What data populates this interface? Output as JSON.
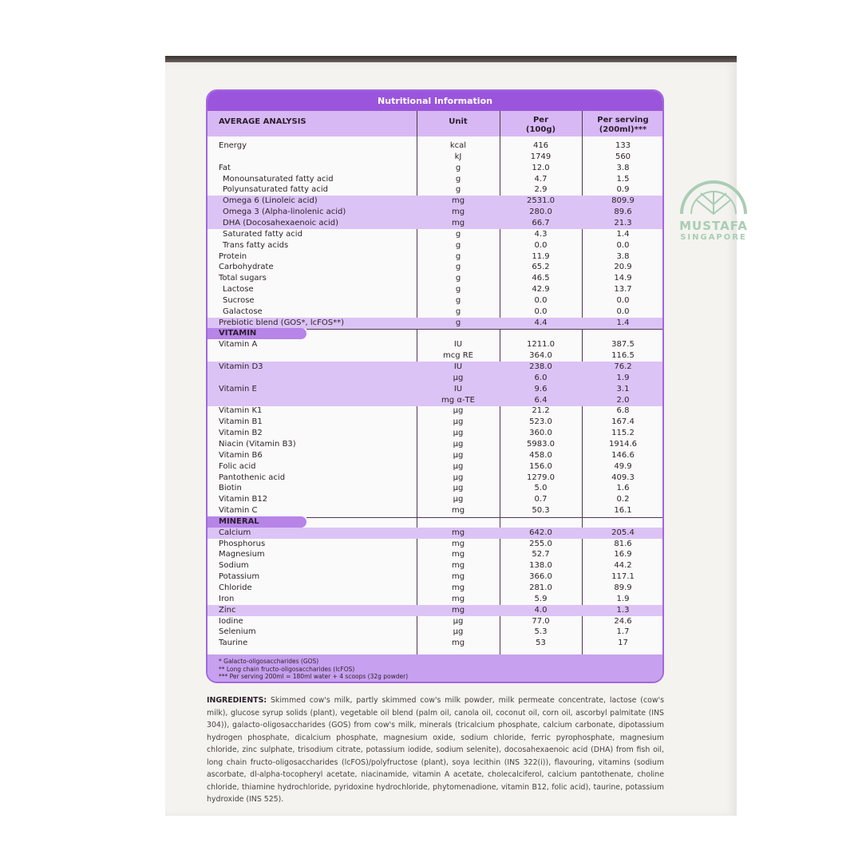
{
  "watermark": {
    "line1": "MUSTAFA",
    "line2": "SINGAPORE"
  },
  "panel": {
    "title": "Nutritional Information",
    "headers": {
      "name": "AVERAGE ANALYSIS",
      "unit": "Unit",
      "per100_1": "Per",
      "per100_2": "(100g)",
      "serving_1": "Per serving",
      "serving_2": "(200ml)***"
    },
    "colors": {
      "accent": "#9b55dd",
      "band": "#dcc3f5",
      "header": "#d7b8f4"
    }
  },
  "rows": [
    {
      "n": "Energy",
      "u": "kcal",
      "a": "416",
      "b": "133"
    },
    {
      "n": "",
      "u": "kJ",
      "a": "1749",
      "b": "560"
    },
    {
      "n": "Fat",
      "u": "g",
      "a": "12.0",
      "b": "3.8"
    },
    {
      "n": "Monounsaturated fatty acid",
      "u": "g",
      "a": "4.7",
      "b": "1.5",
      "sub": true
    },
    {
      "n": "Polyunsaturated fatty acid",
      "u": "g",
      "a": "2.9",
      "b": "0.9",
      "sub": true
    },
    {
      "n": "Omega 6 (Linoleic acid)",
      "u": "mg",
      "a": "2531.0",
      "b": "809.9",
      "sub": true,
      "hl": true
    },
    {
      "n": "Omega 3 (Alpha-linolenic acid)",
      "u": "mg",
      "a": "280.0",
      "b": "89.6",
      "sub": true,
      "hl": true
    },
    {
      "n": "DHA (Docosahexaenoic acid)",
      "u": "mg",
      "a": "66.7",
      "b": "21.3",
      "sub": true,
      "hl": true
    },
    {
      "n": "Saturated fatty acid",
      "u": "g",
      "a": "4.3",
      "b": "1.4",
      "sub": true
    },
    {
      "n": "Trans fatty acids",
      "u": "g",
      "a": "0.0",
      "b": "0.0",
      "sub": true
    },
    {
      "n": "Protein",
      "u": "g",
      "a": "11.9",
      "b": "3.8"
    },
    {
      "n": "Carbohydrate",
      "u": "g",
      "a": "65.2",
      "b": "20.9"
    },
    {
      "n": "Total sugars",
      "u": "g",
      "a": "46.5",
      "b": "14.9"
    },
    {
      "n": "Lactose",
      "u": "g",
      "a": "42.9",
      "b": "13.7",
      "sub": true
    },
    {
      "n": "Sucrose",
      "u": "g",
      "a": "0.0",
      "b": "0.0",
      "sub": true
    },
    {
      "n": "Galactose",
      "u": "g",
      "a": "0.0",
      "b": "0.0",
      "sub": true
    },
    {
      "n": "Prebiotic blend (GOS*, lcFOS**)",
      "u": "g",
      "a": "4.4",
      "b": "1.4",
      "hl": true
    },
    {
      "section": "VITAMIN"
    },
    {
      "n": "Vitamin A",
      "u": "IU",
      "a": "1211.0",
      "b": "387.5"
    },
    {
      "n": "",
      "u": "mcg RE",
      "a": "364.0",
      "b": "116.5"
    },
    {
      "n": "Vitamin D3",
      "u": "IU",
      "a": "238.0",
      "b": "76.2",
      "hl": true
    },
    {
      "n": "",
      "u": "µg",
      "a": "6.0",
      "b": "1.9",
      "hl": true
    },
    {
      "n": "Vitamin E",
      "u": "IU",
      "a": "9.6",
      "b": "3.1",
      "hl": true
    },
    {
      "n": "",
      "u": "mg α-TE",
      "a": "6.4",
      "b": "2.0",
      "hl": true
    },
    {
      "n": "Vitamin K1",
      "u": "µg",
      "a": "21.2",
      "b": "6.8"
    },
    {
      "n": "Vitamin B1",
      "u": "µg",
      "a": "523.0",
      "b": "167.4"
    },
    {
      "n": "Vitamin B2",
      "u": "µg",
      "a": "360.0",
      "b": "115.2"
    },
    {
      "n": "Niacin (Vitamin B3)",
      "u": "µg",
      "a": "5983.0",
      "b": "1914.6"
    },
    {
      "n": "Vitamin B6",
      "u": "µg",
      "a": "458.0",
      "b": "146.6"
    },
    {
      "n": "Folic acid",
      "u": "µg",
      "a": "156.0",
      "b": "49.9"
    },
    {
      "n": "Pantothenic acid",
      "u": "µg",
      "a": "1279.0",
      "b": "409.3"
    },
    {
      "n": "Biotin",
      "u": "µg",
      "a": "5.0",
      "b": "1.6"
    },
    {
      "n": "Vitamin B12",
      "u": "µg",
      "a": "0.7",
      "b": "0.2"
    },
    {
      "n": "Vitamin C",
      "u": "mg",
      "a": "50.3",
      "b": "16.1"
    },
    {
      "section": "MINERAL"
    },
    {
      "n": "Calcium",
      "u": "mg",
      "a": "642.0",
      "b": "205.4",
      "hl": true
    },
    {
      "n": "Phosphorus",
      "u": "mg",
      "a": "255.0",
      "b": "81.6"
    },
    {
      "n": "Magnesium",
      "u": "mg",
      "a": "52.7",
      "b": "16.9"
    },
    {
      "n": "Sodium",
      "u": "mg",
      "a": "138.0",
      "b": "44.2"
    },
    {
      "n": "Potassium",
      "u": "mg",
      "a": "366.0",
      "b": "117.1"
    },
    {
      "n": "Chloride",
      "u": "mg",
      "a": "281.0",
      "b": "89.9"
    },
    {
      "n": "Iron",
      "u": "mg",
      "a": "5.9",
      "b": "1.9"
    },
    {
      "n": "Zinc",
      "u": "mg",
      "a": "4.0",
      "b": "1.3",
      "hl": true
    },
    {
      "n": "Iodine",
      "u": "µg",
      "a": "77.0",
      "b": "24.6"
    },
    {
      "n": "Selenium",
      "u": "µg",
      "a": "5.3",
      "b": "1.7"
    },
    {
      "n": "Taurine",
      "u": "mg",
      "a": "53",
      "b": "17"
    }
  ],
  "footnotes": [
    "* Galacto-oligosaccharides (GOS)",
    "** Long chain fructo-oligosaccharides (lcFOS)",
    "*** Per serving 200ml = 180ml water + 4 scoops (32g powder)"
  ],
  "ingredients": {
    "label": "INGREDIENTS:",
    "text": " Skimmed cow's milk, partly skimmed cow's milk powder, milk permeate concentrate, lactose (cow's milk), glucose syrup solids (plant), vegetable oil blend (palm oil, canola oil, coconut oil, corn oil, ascorbyl palmitate (INS 304)), galacto-oligosaccharides (GOS) from cow's milk, minerals (tricalcium phosphate, calcium carbonate, dipotassium hydrogen phosphate, dicalcium phosphate, magnesium oxide, sodium chloride, ferric pyrophosphate, magnesium chloride, zinc sulphate, trisodium citrate, potassium iodide, sodium selenite), docosahexaenoic acid (DHA) from fish oil, long chain fructo-oligosaccharides (lcFOS)/polyfructose (plant), soya lecithin (INS 322(i)), flavouring, vitamins (sodium ascorbate, dl-alpha-tocopheryl acetate, niacinamide, vitamin A acetate, cholecalciferol, calcium pantothenate, choline chloride, thiamine hydrochloride, pyridoxine hydrochloride, phytomenadione, vitamin B12, folic acid), taurine, potassium hydroxide (INS 525)."
  }
}
